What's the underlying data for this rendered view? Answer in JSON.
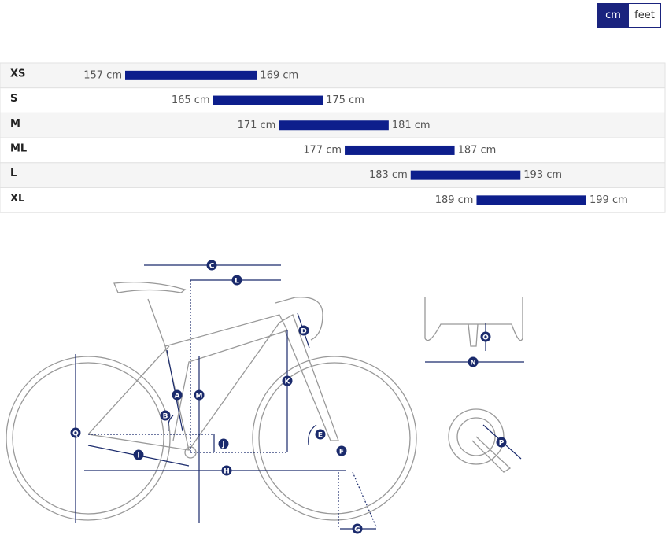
{
  "toggle": {
    "options": [
      "cm",
      "feet"
    ]
  },
  "size_chart": {
    "rows": [
      {
        "size": "XS",
        "min": 157,
        "max": 169,
        "min_label": "157 cm",
        "max_label": "169 cm"
      },
      {
        "size": "S",
        "min": 165,
        "max": 175,
        "min_label": "165 cm",
        "max_label": "175 cm"
      },
      {
        "size": "M",
        "min": 171,
        "max": 181,
        "min_label": "171 cm",
        "max_label": "181 cm"
      },
      {
        "size": "ML",
        "min": 177,
        "max": 187,
        "min_label": "177 cm",
        "max_label": "187 cm"
      },
      {
        "size": "L",
        "min": 183,
        "max": 193,
        "min_label": "183 cm",
        "max_label": "193 cm"
      },
      {
        "size": "XL",
        "min": 189,
        "max": 199,
        "min_label": "189 cm",
        "max_label": "199 cm"
      }
    ]
  },
  "geometry": {
    "labels": [
      "A",
      "B",
      "C",
      "D",
      "E",
      "F",
      "G",
      "H",
      "I",
      "J",
      "K",
      "L",
      "M",
      "N",
      "O",
      "P",
      "Q"
    ]
  }
}
